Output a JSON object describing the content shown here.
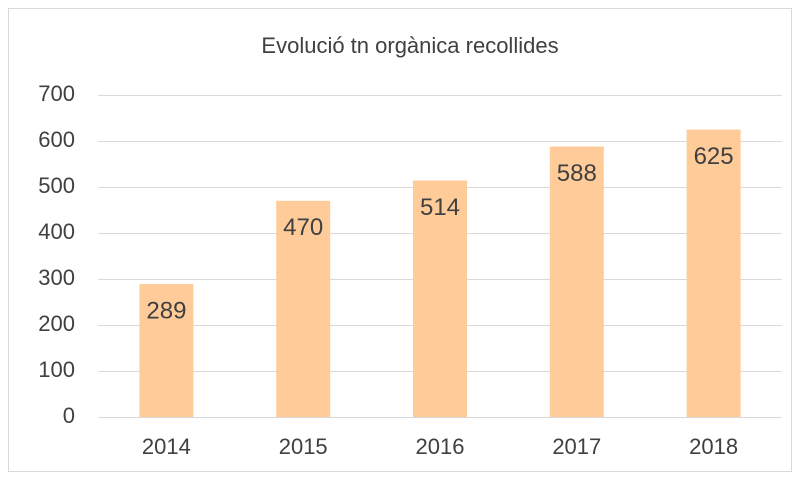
{
  "chart_data": {
    "type": "bar",
    "title": "Evolució tn orgànica recollides",
    "categories": [
      "2014",
      "2015",
      "2016",
      "2017",
      "2018"
    ],
    "values": [
      289,
      470,
      514,
      588,
      625
    ],
    "color": "#ffcc99",
    "ylim": [
      0,
      700
    ],
    "yticks": [
      0,
      100,
      200,
      300,
      400,
      500,
      600,
      700
    ],
    "grid": true
  }
}
